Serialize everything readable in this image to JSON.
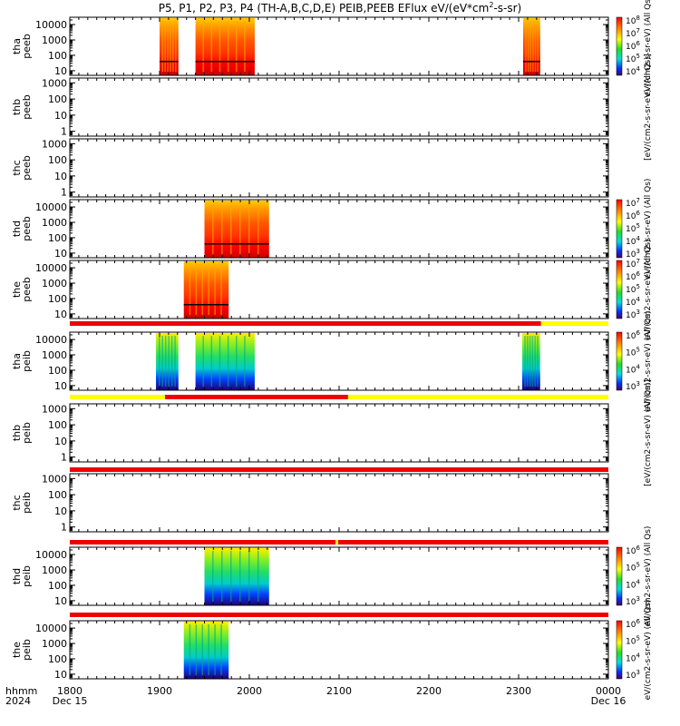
{
  "title": "P5, P1, P2, P3, P4 (TH-A,B,C,D,E) PEIB,PEEB EFlux eV/(eV*cm",
  "title_sup": "2",
  "title_tail": "-s-sr)",
  "colors": {
    "bar_red": "#ee0000",
    "bar_yellow": "#ffff00",
    "axis": "#000000"
  },
  "chart_data": [
    {
      "type": "heatmap",
      "panel": "tha peeb",
      "ylabel": [
        "tha",
        "peeb"
      ],
      "yticks": [
        "10000",
        "1000",
        "100",
        "10"
      ],
      "ylim": [
        5,
        30000
      ],
      "log_y": true,
      "data_blocks": [
        {
          "t0": 1900,
          "t1": 1921,
          "kind": "electron"
        },
        {
          "t0": 1940,
          "t1": 2006,
          "kind": "electron"
        },
        {
          "t0": 2305,
          "t1": 2324,
          "kind": "electron"
        }
      ],
      "colorbar": {
        "labels": [
          "10^8",
          "10^7",
          "10^6",
          "10^5",
          "10^4"
        ],
        "title": "eV/(cm2-s-sr-eV) (All Qs)"
      }
    },
    {
      "type": "heatmap",
      "panel": "thb peeb",
      "ylabel": [
        "thb",
        "peeb"
      ],
      "yticks": [
        "1000",
        "100",
        "10",
        "1"
      ],
      "ylim": [
        0.5,
        2000
      ],
      "log_y": true,
      "data_blocks": [],
      "colorbar": {
        "labels": [],
        "title": "[eV/(cm2-s-sr-eV) (All Qs)]"
      }
    },
    {
      "type": "heatmap",
      "panel": "thc peeb",
      "ylabel": [
        "thc",
        "peeb"
      ],
      "yticks": [
        "1000",
        "100",
        "10",
        "1"
      ],
      "ylim": [
        0.5,
        2000
      ],
      "log_y": true,
      "data_blocks": [],
      "colorbar": {
        "labels": [],
        "title": ""
      }
    },
    {
      "type": "heatmap",
      "panel": "thd peeb",
      "ylabel": [
        "thd",
        "peeb"
      ],
      "yticks": [
        "10000",
        "1000",
        "100",
        "10"
      ],
      "ylim": [
        5,
        30000
      ],
      "log_y": true,
      "data_blocks": [
        {
          "t0": 1950,
          "t1": 2022,
          "kind": "electron"
        }
      ],
      "colorbar": {
        "labels": [
          "10^7",
          "10^6",
          "10^5",
          "10^4",
          "10^3"
        ],
        "title": "eV/(cm2-s-sr-eV) (All Qs)"
      }
    },
    {
      "type": "heatmap",
      "panel": "the peeb",
      "ylabel": [
        "the",
        "peeb"
      ],
      "yticks": [
        "10000",
        "1000",
        "100",
        "10"
      ],
      "ylim": [
        5,
        30000
      ],
      "log_y": true,
      "data_blocks": [
        {
          "t0": 1927,
          "t1": 1977,
          "kind": "electron"
        }
      ],
      "colorbar": {
        "labels": [
          "10^7",
          "10^6",
          "10^5",
          "10^4",
          "10^3"
        ],
        "title": "eV/(cm2-s-sr-eV) (All Qs)"
      }
    },
    {
      "type": "heatmap",
      "panel": "tha peib",
      "ylabel": [
        "tha",
        "peib"
      ],
      "yticks": [
        "10000",
        "1000",
        "100",
        "10"
      ],
      "ylim": [
        5,
        30000
      ],
      "log_y": true,
      "data_blocks": [
        {
          "t0": 1896,
          "t1": 1921,
          "kind": "ion"
        },
        {
          "t0": 1940,
          "t1": 2006,
          "kind": "ion"
        },
        {
          "t0": 2304,
          "t1": 2324,
          "kind": "ion"
        }
      ],
      "colorbar": {
        "labels": [
          "10^6",
          "10^5",
          "10^4",
          "10^3"
        ],
        "title": "eV/(cm2-s-sr-eV) (All Qs)"
      }
    },
    {
      "type": "heatmap",
      "panel": "thb peib",
      "ylabel": [
        "thb",
        "peib"
      ],
      "yticks": [
        "1000",
        "100",
        "10",
        "1"
      ],
      "ylim": [
        0.5,
        2000
      ],
      "log_y": true,
      "data_blocks": [],
      "colorbar": {
        "labels": [],
        "title": "[eV/(cm2-s-sr-eV) (All Qs)]"
      }
    },
    {
      "type": "heatmap",
      "panel": "thc peib",
      "ylabel": [
        "thc",
        "peib"
      ],
      "yticks": [
        "1000",
        "100",
        "10",
        "1"
      ],
      "ylim": [
        0.5,
        2000
      ],
      "log_y": true,
      "data_blocks": [],
      "colorbar": {
        "labels": [],
        "title": ""
      }
    },
    {
      "type": "heatmap",
      "panel": "thd peib",
      "ylabel": [
        "thd",
        "peib"
      ],
      "yticks": [
        "10000",
        "1000",
        "100",
        "10"
      ],
      "ylim": [
        5,
        30000
      ],
      "log_y": true,
      "data_blocks": [
        {
          "t0": 1950,
          "t1": 2022,
          "kind": "ion"
        }
      ],
      "colorbar": {
        "labels": [
          "10^6",
          "10^5",
          "10^4",
          "10^3"
        ],
        "title": "eV/(cm2-s-sr-eV) (All Qs)"
      }
    },
    {
      "type": "heatmap",
      "panel": "the peib",
      "ylabel": [
        "the",
        "peib"
      ],
      "yticks": [
        "10000",
        "1000",
        "100",
        "10"
      ],
      "ylim": [
        5,
        30000
      ],
      "log_y": true,
      "data_blocks": [
        {
          "t0": 1927,
          "t1": 1977,
          "kind": "ion"
        }
      ],
      "colorbar": {
        "labels": [
          "10^6",
          "10^5",
          "10^4",
          "10^3"
        ],
        "title": "eV/(cm2-s-sr-eV) (All Qs)"
      }
    }
  ],
  "status_bars": [
    {
      "after_panel": 4,
      "segments": [
        {
          "from": 1800,
          "to": 2325,
          "color": "red"
        },
        {
          "from": 2325,
          "to": 2400,
          "color": "yellow"
        }
      ]
    },
    {
      "after_panel": 5,
      "segments": [
        {
          "from": 1800,
          "to": 1906,
          "color": "yellow"
        },
        {
          "from": 1906,
          "to": 2110,
          "color": "red"
        },
        {
          "from": 2110,
          "to": 2400,
          "color": "yellow"
        }
      ]
    },
    {
      "after_panel": 6,
      "segments": [
        {
          "from": 1800,
          "to": 2400,
          "color": "red"
        }
      ]
    },
    {
      "after_panel": 7,
      "segments": [
        {
          "from": 1800,
          "to": 2096,
          "color": "red"
        },
        {
          "from": 2096,
          "to": 2099,
          "color": "yellow"
        },
        {
          "from": 2099,
          "to": 2400,
          "color": "red"
        }
      ]
    },
    {
      "after_panel": 8,
      "segments": [
        {
          "from": 1800,
          "to": 2400,
          "color": "red"
        }
      ]
    }
  ],
  "x_axis": {
    "ticks": [
      "1800",
      "1900",
      "2000",
      "2100",
      "2200",
      "2300",
      "0000"
    ],
    "corner_labels": [
      "hhmm",
      "2024"
    ],
    "start_date": "Dec 15",
    "end_date": "Dec 16"
  }
}
